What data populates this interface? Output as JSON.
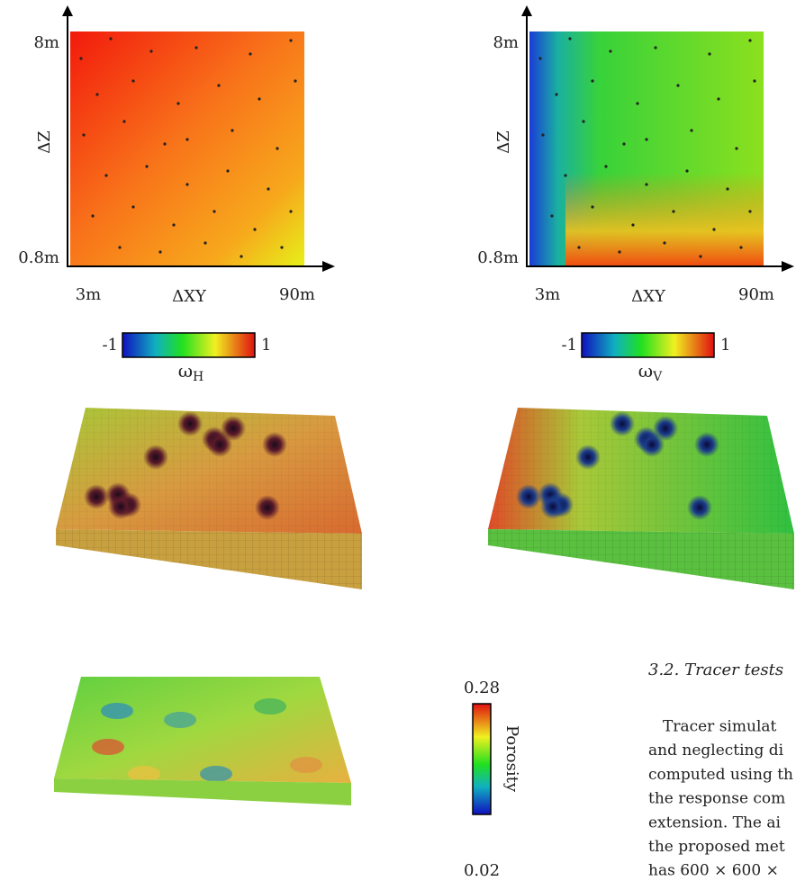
{
  "panels": [
    {
      "y_max": "8m",
      "y_min": "0.8m",
      "y_label": "ΔZ",
      "x_min": "3m",
      "x_label": "ΔXY",
      "x_max": "90m",
      "colorbar_min": "-1",
      "colorbar_max": "1",
      "symbol": "ω",
      "subscript": "H"
    },
    {
      "y_max": "8m",
      "y_min": "0.8m",
      "y_label": "ΔZ",
      "x_min": "3m",
      "x_label": "ΔXY",
      "x_max": "90m",
      "colorbar_min": "-1",
      "colorbar_max": "1",
      "symbol": "ω",
      "subscript": "V"
    }
  ],
  "porosity": {
    "max": "0.28",
    "min": "0.02",
    "label": "Porosity"
  },
  "section": {
    "heading": "3.2.  Tracer tests",
    "lines": [
      "Tracer simulat",
      "and neglecting di",
      "computed using th",
      "the response com",
      "extension. The ai",
      "the proposed met",
      "has 600 × 600 ×"
    ]
  }
}
